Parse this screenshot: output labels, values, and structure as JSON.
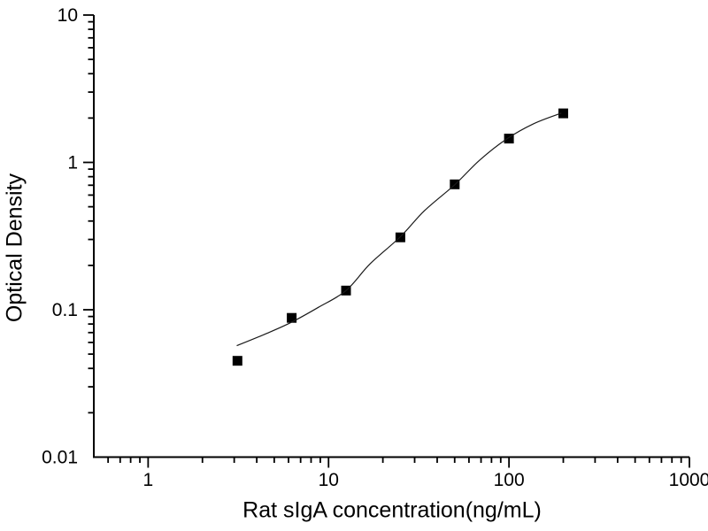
{
  "figure": {
    "background": "#ffffff"
  },
  "chart_data": {
    "type": "scatter",
    "title": "",
    "xlabel": "Rat sIgA concentration(ng/mL)",
    "ylabel": "Optical Density",
    "x_scale": "log",
    "y_scale": "log",
    "xlim": [
      0.5,
      1000
    ],
    "ylim": [
      0.01,
      10
    ],
    "x_ticks": {
      "values": [
        1,
        10,
        100,
        1000
      ],
      "labels": [
        "1",
        "10",
        "100",
        "1000"
      ]
    },
    "y_ticks": {
      "values": [
        0.01,
        0.1,
        1,
        10
      ],
      "labels": [
        "0.01",
        "0.1",
        "1",
        "10"
      ]
    },
    "minor_ticks": "log decades, multiples 2-9, outward",
    "grid": false,
    "legend": "none",
    "axis_color": "#000000",
    "background_color": "#ffffff",
    "series": [
      {
        "name": "standard-data-points",
        "kind": "scatter",
        "marker": "filled-square",
        "color": "#000000",
        "points": [
          [
            3.125,
            0.045
          ],
          [
            6.25,
            0.088
          ],
          [
            12.5,
            0.135
          ],
          [
            25,
            0.31
          ],
          [
            50,
            0.71
          ],
          [
            100,
            1.45
          ],
          [
            200,
            2.15
          ]
        ]
      },
      {
        "name": "fitted-curve",
        "kind": "line",
        "color": "#1a1a1a",
        "points": [
          [
            3.1,
            0.057
          ],
          [
            4.4,
            0.068
          ],
          [
            6.2,
            0.082
          ],
          [
            8.8,
            0.104
          ],
          [
            12.5,
            0.135
          ],
          [
            17,
            0.205
          ],
          [
            25,
            0.313
          ],
          [
            34,
            0.47
          ],
          [
            50,
            0.705
          ],
          [
            69,
            1.04
          ],
          [
            97,
            1.44
          ],
          [
            137,
            1.83
          ],
          [
            195,
            2.16
          ]
        ]
      }
    ]
  }
}
